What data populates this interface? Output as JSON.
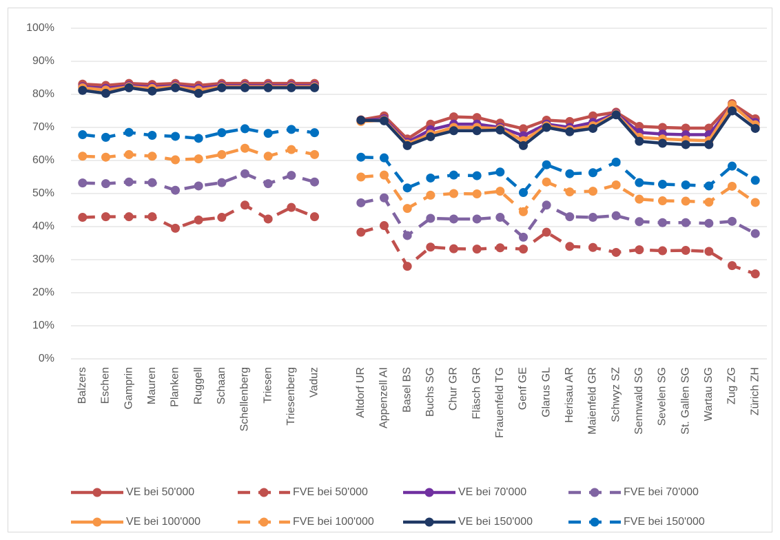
{
  "chart_data": {
    "type": "line",
    "categories": [
      "Balzers",
      "Eschen",
      "Gamprin",
      "Mauren",
      "Planken",
      "Ruggell",
      "Schaan",
      "Schellenberg",
      "Triesen",
      "Triesenberg",
      "Vaduz",
      null,
      "Altdorf UR",
      "Appenzell AI",
      "Basel BS",
      "Buchs SG",
      "Chur GR",
      "Fläsch GR",
      "Frauenfeld TG",
      "Genf GE",
      "Glarus GL",
      "Herisau AR",
      "Maienfeld GR",
      "Schwyz SZ",
      "Sennwald SG",
      "Sevelen SG",
      "St. Gallen SG",
      "Wartau SG",
      "Zug ZG",
      "Zürich ZH"
    ],
    "ylim": [
      0,
      100
    ],
    "yticks": [
      {
        "value": 0,
        "label": "0%"
      },
      {
        "value": 10,
        "label": "10%"
      },
      {
        "value": 20,
        "label": "20%"
      },
      {
        "value": 30,
        "label": "30%"
      },
      {
        "value": 40,
        "label": "40%"
      },
      {
        "value": 50,
        "label": "50%"
      },
      {
        "value": 60,
        "label": "60%"
      },
      {
        "value": 70,
        "label": "70%"
      },
      {
        "value": 80,
        "label": "80%"
      },
      {
        "value": 90,
        "label": "90%"
      },
      {
        "value": 100,
        "label": "100%"
      }
    ],
    "grid": true,
    "legend": "bottom",
    "series": [
      {
        "name": "VE bei 50'000",
        "color": "#c0504d",
        "dashed": false,
        "values": [
          83.1,
          82.7,
          83.3,
          83,
          83.3,
          82.7,
          83.3,
          83.3,
          83.3,
          83.3,
          83.3,
          null,
          72.3,
          73.5,
          66.5,
          71,
          73.2,
          73,
          71.3,
          69.6,
          72.2,
          71.8,
          73.5,
          74.6,
          70.3,
          70,
          69.8,
          69.8,
          77.2,
          72.6
        ]
      },
      {
        "name": "FVE bei 50'000",
        "color": "#c0504d",
        "dashed": true,
        "values": [
          42.8,
          43,
          43,
          43,
          39.5,
          42,
          42.8,
          46.5,
          42.3,
          45.8,
          43,
          null,
          38.3,
          40.3,
          28,
          33.8,
          33.3,
          33.2,
          33.6,
          33.2,
          38.3,
          34,
          33.7,
          32.2,
          33,
          32.7,
          32.8,
          32.5,
          28.2,
          25.7
        ]
      },
      {
        "name": "VE bei 70'000",
        "color": "#7030a0",
        "dashed": false,
        "values": [
          82.3,
          81.8,
          82.6,
          82.2,
          82.6,
          81.8,
          82.6,
          82.6,
          82.6,
          82.6,
          82.6,
          null,
          72,
          72.6,
          65.5,
          69.3,
          71,
          71,
          70,
          67.5,
          71,
          70,
          71.5,
          74.2,
          68.5,
          68,
          67.8,
          67.8,
          76.5,
          71.5
        ]
      },
      {
        "name": "FVE bei 70'000",
        "color": "#8064a2",
        "dashed": true,
        "values": [
          53.2,
          53,
          53.5,
          53.3,
          51,
          52.3,
          53.3,
          56,
          53,
          55.5,
          53.5,
          null,
          47.2,
          48.7,
          37.3,
          42.5,
          42.3,
          42.3,
          42.8,
          36.8,
          46.5,
          43,
          42.8,
          43.3,
          41.5,
          41.2,
          41.2,
          41,
          41.6,
          37.9
        ]
      },
      {
        "name": "VE bei 100'000",
        "color": "#f79646",
        "dashed": false,
        "values": [
          82,
          81.3,
          82.3,
          81.8,
          82.3,
          81.3,
          82.3,
          82.3,
          82.3,
          82.3,
          82.3,
          null,
          71.8,
          72.2,
          65,
          68,
          70,
          70,
          69.6,
          66,
          70.5,
          69.3,
          70.5,
          74,
          67,
          66.5,
          66.2,
          66,
          76.8,
          70.8
        ]
      },
      {
        "name": "FVE bei 100'000",
        "color": "#f79646",
        "dashed": true,
        "values": [
          61.3,
          61,
          61.8,
          61.3,
          60.2,
          60.5,
          61.8,
          63.7,
          61.3,
          63.3,
          61.8,
          null,
          55,
          55.6,
          45.5,
          49.5,
          50,
          49.9,
          50.7,
          44.5,
          53.5,
          50.5,
          50.7,
          52.6,
          48.3,
          47.8,
          47.7,
          47.4,
          52.2,
          47.3
        ]
      },
      {
        "name": "VE bei 150'000",
        "color": "#1f3864",
        "dashed": false,
        "values": [
          81.2,
          80.3,
          82,
          81,
          82,
          80.3,
          82,
          82,
          82,
          82,
          82,
          null,
          72.2,
          72,
          64.5,
          67.2,
          69,
          69,
          69.2,
          64.5,
          70,
          68.7,
          69.7,
          73.8,
          65.8,
          65.2,
          64.8,
          64.8,
          75,
          69.7
        ]
      },
      {
        "name": "FVE bei 150'000",
        "color": "#0070c0",
        "dashed": true,
        "values": [
          67.8,
          67,
          68.5,
          67.6,
          67.3,
          66.7,
          68.4,
          69.6,
          68.2,
          69.4,
          68.4,
          null,
          61,
          60.8,
          51.7,
          54.7,
          55.6,
          55.4,
          56.5,
          50.3,
          58.7,
          56,
          56.3,
          59.5,
          53.3,
          52.8,
          52.6,
          52.3,
          58.3,
          54
        ]
      }
    ]
  }
}
